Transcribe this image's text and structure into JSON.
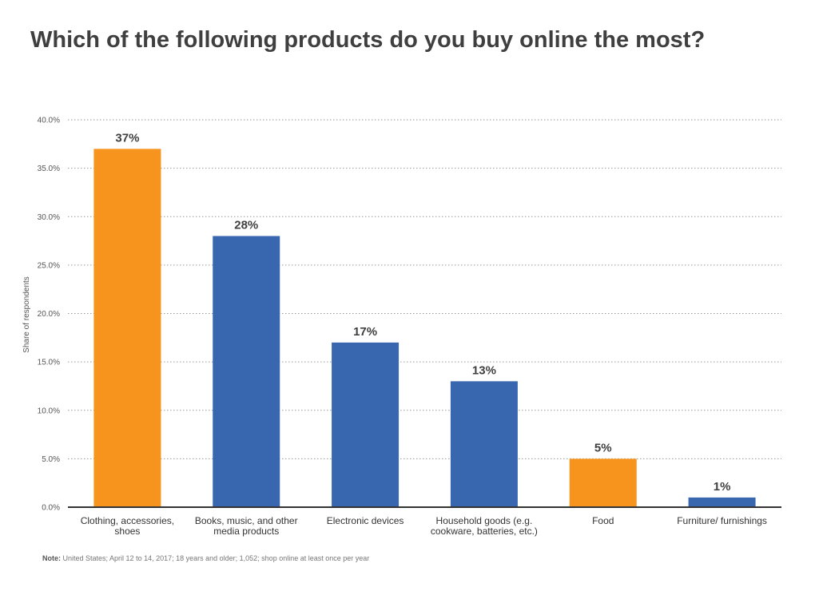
{
  "title": "Which of the following products do you buy online the most?",
  "note_label": "Note:",
  "note_text": "United States; April 12 to 14, 2017; 18 years and older; 1,052; shop online at least once per year",
  "colors": {
    "orange": "#F7941D",
    "blue": "#3867B0"
  },
  "chart_data": {
    "type": "bar",
    "title": "Which of the following products do you buy online the most?",
    "xlabel": "",
    "ylabel": "Share of respondents",
    "ylim": [
      0,
      40
    ],
    "yticks": [
      "0.0%",
      "5.0%",
      "10.0%",
      "15.0%",
      "20.0%",
      "25.0%",
      "30.0%",
      "35.0%",
      "40.0%"
    ],
    "grid": true,
    "categories": [
      [
        "Clothing, accessories,",
        "shoes"
      ],
      [
        "Books, music, and other",
        "media products"
      ],
      [
        "Electronic devices"
      ],
      [
        "Household goods (e.g.",
        "cookware, batteries, etc.)"
      ],
      [
        "Food"
      ],
      [
        "Furniture/ furnishings"
      ]
    ],
    "values": [
      37,
      28,
      17,
      13,
      5,
      1
    ],
    "data_labels": [
      "37%",
      "28%",
      "17%",
      "13%",
      "5%",
      "1%"
    ],
    "bar_colors": [
      "orange",
      "blue",
      "blue",
      "blue",
      "orange",
      "blue"
    ]
  }
}
